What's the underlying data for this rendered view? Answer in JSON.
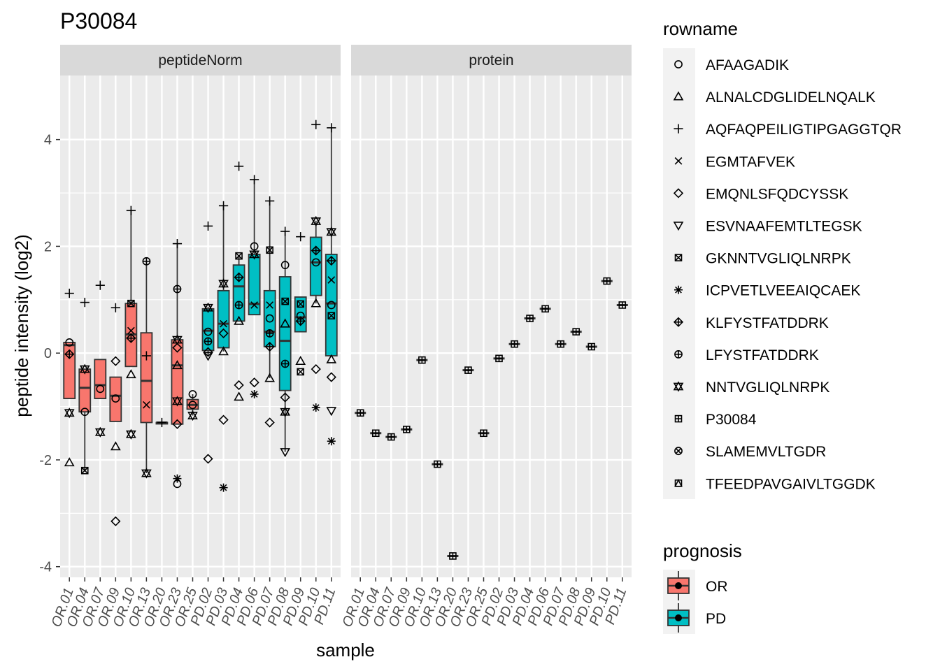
{
  "chart_data": {
    "type": "box",
    "title": "P30084",
    "xlabel": "sample",
    "ylabel": "peptide intensity (log2)",
    "ylim": [
      -4.2,
      5.2
    ],
    "yticks": [
      -4,
      -2,
      0,
      2,
      4
    ],
    "grid": true,
    "facets": [
      "peptideNorm",
      "protein"
    ],
    "samples": [
      "OR.01",
      "OR.04",
      "OR.07",
      "OR.09",
      "OR.10",
      "OR.13",
      "OR.20",
      "OR.23",
      "OR.25",
      "PD.02",
      "PD.03",
      "PD.04",
      "PD.06",
      "PD.07",
      "PD.08",
      "PD.09",
      "PD.10",
      "PD.11"
    ],
    "sample_prognosis": [
      "OR",
      "OR",
      "OR",
      "OR",
      "OR",
      "OR",
      "OR",
      "OR",
      "OR",
      "PD",
      "PD",
      "PD",
      "PD",
      "PD",
      "PD",
      "PD",
      "PD",
      "PD"
    ],
    "legend_rowname": {
      "title": "rowname",
      "items": [
        {
          "name": "AFAAGADIK",
          "shape": "circle"
        },
        {
          "name": "ALNALCDGLIDELNQALK",
          "shape": "triangle"
        },
        {
          "name": "AQFAQPEILIGTIPGAGGTQR",
          "shape": "plus"
        },
        {
          "name": "EGMTAFVEK",
          "shape": "cross"
        },
        {
          "name": "EMQNLSFQDCYSSK",
          "shape": "diamond"
        },
        {
          "name": "ESVNAAFEMTLTEGSK",
          "shape": "triangle-down"
        },
        {
          "name": "GKNNTVGLIQLNRPK",
          "shape": "square-x"
        },
        {
          "name": "ICPVETLVEEAIQCAEK",
          "shape": "asterisk"
        },
        {
          "name": "KLFYSTFATDDRK",
          "shape": "diamond-plus"
        },
        {
          "name": "LFYSTFATDDRK",
          "shape": "circle-plus"
        },
        {
          "name": "NNTVGLIQLNRPK",
          "shape": "star6"
        },
        {
          "name": "P30084",
          "shape": "square-plus"
        },
        {
          "name": "SLAMEMVLTGDR",
          "shape": "circle-x"
        },
        {
          "name": "TFEEDPAVGAIVLTGGDK",
          "shape": "square-triangle"
        }
      ]
    },
    "legend_prognosis": {
      "title": "prognosis",
      "items": [
        {
          "name": "OR",
          "color": "#F8766D"
        },
        {
          "name": "PD",
          "color": "#00BFC4"
        }
      ]
    },
    "peptideNorm_boxes": [
      {
        "sample": "OR.01",
        "q1": -0.85,
        "median": 0.15,
        "q3": 0.2,
        "lo": -0.85,
        "hi": 0.2
      },
      {
        "sample": "OR.04",
        "q1": -1.1,
        "median": -0.65,
        "q3": -0.3,
        "lo": -2.2,
        "hi": -0.3
      },
      {
        "sample": "OR.07",
        "q1": -0.85,
        "median": -0.6,
        "q3": -0.12,
        "lo": -0.85,
        "hi": -0.12
      },
      {
        "sample": "OR.09",
        "q1": -1.28,
        "median": -0.8,
        "q3": -0.45,
        "lo": -1.28,
        "hi": -0.45
      },
      {
        "sample": "OR.10",
        "q1": -0.25,
        "median": 0.35,
        "q3": 0.93,
        "lo": -0.25,
        "hi": 2.67
      },
      {
        "sample": "OR.13",
        "q1": -1.3,
        "median": -0.52,
        "q3": 0.38,
        "lo": -2.25,
        "hi": 1.72
      },
      {
        "sample": "OR.20",
        "q1": -1.3,
        "median": -1.3,
        "q3": -1.3,
        "lo": -1.3,
        "hi": -1.3
      },
      {
        "sample": "OR.23",
        "q1": -1.33,
        "median": -0.23,
        "q3": 0.25,
        "lo": -1.33,
        "hi": 2.05
      },
      {
        "sample": "OR.25",
        "q1": -1.05,
        "median": -0.97,
        "q3": -0.87,
        "lo": -1.17,
        "hi": -0.77
      },
      {
        "sample": "PD.02",
        "q1": 0.05,
        "median": 0.42,
        "q3": 0.83,
        "lo": -0.05,
        "hi": 0.87
      },
      {
        "sample": "PD.03",
        "q1": 0.1,
        "median": 0.55,
        "q3": 1.17,
        "lo": 0.03,
        "hi": 2.76
      },
      {
        "sample": "PD.04",
        "q1": 0.6,
        "median": 1.25,
        "q3": 1.65,
        "lo": 0.6,
        "hi": 1.82
      },
      {
        "sample": "PD.06",
        "q1": 0.72,
        "median": 0.92,
        "q3": 1.85,
        "lo": 0.72,
        "hi": 3.25
      },
      {
        "sample": "PD.07",
        "q1": 0.12,
        "median": 0.4,
        "q3": 1.17,
        "lo": -0.47,
        "hi": 2.85
      },
      {
        "sample": "PD.08",
        "q1": -0.7,
        "median": 0.23,
        "q3": 1.43,
        "lo": -1.85,
        "hi": 2.28
      },
      {
        "sample": "PD.09",
        "q1": 0.4,
        "median": 0.67,
        "q3": 1.05,
        "lo": 0.4,
        "hi": 1.05
      },
      {
        "sample": "PD.10",
        "q1": 1.08,
        "median": 1.7,
        "q3": 2.17,
        "lo": 0.93,
        "hi": 2.48
      },
      {
        "sample": "PD.11",
        "q1": -0.05,
        "median": 0.93,
        "q3": 1.85,
        "lo": -0.05,
        "hi": 4.22
      }
    ],
    "peptideNorm_points": [
      {
        "sample": "OR.01",
        "shape": "plus",
        "y": 1.12
      },
      {
        "sample": "OR.01",
        "shape": "circle",
        "y": 0.2
      },
      {
        "sample": "OR.01",
        "shape": "diamond-plus",
        "y": -0.02
      },
      {
        "sample": "OR.01",
        "shape": "star6",
        "y": -1.12
      },
      {
        "sample": "OR.01",
        "shape": "triangle",
        "y": -2.05
      },
      {
        "sample": "OR.04",
        "shape": "plus",
        "y": 0.95
      },
      {
        "sample": "OR.04",
        "shape": "star6",
        "y": -0.3
      },
      {
        "sample": "OR.04",
        "shape": "circle",
        "y": -1.1
      },
      {
        "sample": "OR.04",
        "shape": "square-x",
        "y": -2.2
      },
      {
        "sample": "OR.07",
        "shape": "plus",
        "y": 1.27
      },
      {
        "sample": "OR.07",
        "shape": "circle",
        "y": -0.67
      },
      {
        "sample": "OR.07",
        "shape": "star6",
        "y": -1.48
      },
      {
        "sample": "OR.09",
        "shape": "plus",
        "y": 0.85
      },
      {
        "sample": "OR.09",
        "shape": "diamond",
        "y": -0.15
      },
      {
        "sample": "OR.09",
        "shape": "circle",
        "y": -0.85
      },
      {
        "sample": "OR.09",
        "shape": "triangle",
        "y": -1.75
      },
      {
        "sample": "OR.09",
        "shape": "diamond",
        "y": -3.15
      },
      {
        "sample": "OR.10",
        "shape": "plus",
        "y": 2.67
      },
      {
        "sample": "OR.10",
        "shape": "square-x",
        "y": 0.93
      },
      {
        "sample": "OR.10",
        "shape": "cross",
        "y": 0.42
      },
      {
        "sample": "OR.10",
        "shape": "diamond-plus",
        "y": 0.28
      },
      {
        "sample": "OR.10",
        "shape": "triangle",
        "y": -0.4
      },
      {
        "sample": "OR.10",
        "shape": "star6",
        "y": -1.52
      },
      {
        "sample": "OR.13",
        "shape": "circle-plus",
        "y": 1.72
      },
      {
        "sample": "OR.13",
        "shape": "plus",
        "y": -0.05
      },
      {
        "sample": "OR.13",
        "shape": "cross",
        "y": -0.97
      },
      {
        "sample": "OR.13",
        "shape": "star6",
        "y": -2.25
      },
      {
        "sample": "OR.20",
        "shape": "plus",
        "y": -1.3
      },
      {
        "sample": "OR.23",
        "shape": "plus",
        "y": 2.05
      },
      {
        "sample": "OR.23",
        "shape": "circle-plus",
        "y": 1.2
      },
      {
        "sample": "OR.23",
        "shape": "star6",
        "y": 0.25
      },
      {
        "sample": "OR.23",
        "shape": "diamond",
        "y": 0.1
      },
      {
        "sample": "OR.23",
        "shape": "triangle",
        "y": -0.23
      },
      {
        "sample": "OR.23",
        "shape": "star6",
        "y": -0.9
      },
      {
        "sample": "OR.23",
        "shape": "diamond",
        "y": -1.33
      },
      {
        "sample": "OR.23",
        "shape": "asterisk",
        "y": -2.35
      },
      {
        "sample": "OR.23",
        "shape": "circle",
        "y": -2.45
      },
      {
        "sample": "OR.25",
        "shape": "circle",
        "y": -0.77
      },
      {
        "sample": "OR.25",
        "shape": "circle",
        "y": -0.97
      },
      {
        "sample": "OR.25",
        "shape": "star6",
        "y": -1.17
      },
      {
        "sample": "PD.02",
        "shape": "plus",
        "y": 2.38
      },
      {
        "sample": "PD.02",
        "shape": "star6",
        "y": 0.85
      },
      {
        "sample": "PD.02",
        "shape": "circle",
        "y": 0.4
      },
      {
        "sample": "PD.02",
        "shape": "circle-plus",
        "y": 0.22
      },
      {
        "sample": "PD.02",
        "shape": "diamond",
        "y": 0.02
      },
      {
        "sample": "PD.02",
        "shape": "triangle-down",
        "y": -0.05
      },
      {
        "sample": "PD.02",
        "shape": "diamond",
        "y": -1.98
      },
      {
        "sample": "PD.03",
        "shape": "plus",
        "y": 2.76
      },
      {
        "sample": "PD.03",
        "shape": "star6",
        "y": 1.3
      },
      {
        "sample": "PD.03",
        "shape": "cross",
        "y": 0.55
      },
      {
        "sample": "PD.03",
        "shape": "diamond",
        "y": 0.37
      },
      {
        "sample": "PD.03",
        "shape": "triangle",
        "y": 0.03
      },
      {
        "sample": "PD.03",
        "shape": "diamond",
        "y": -1.25
      },
      {
        "sample": "PD.03",
        "shape": "asterisk",
        "y": -2.52
      },
      {
        "sample": "PD.04",
        "shape": "plus",
        "y": 3.5
      },
      {
        "sample": "PD.04",
        "shape": "square-x",
        "y": 1.82
      },
      {
        "sample": "PD.04",
        "shape": "diamond-plus",
        "y": 1.42
      },
      {
        "sample": "PD.04",
        "shape": "circle-plus",
        "y": 0.9
      },
      {
        "sample": "PD.04",
        "shape": "triangle",
        "y": 0.6
      },
      {
        "sample": "PD.04",
        "shape": "diamond",
        "y": -0.6
      },
      {
        "sample": "PD.04",
        "shape": "triangle",
        "y": -0.82
      },
      {
        "sample": "PD.06",
        "shape": "plus",
        "y": 3.25
      },
      {
        "sample": "PD.06",
        "shape": "circle",
        "y": 2.0
      },
      {
        "sample": "PD.06",
        "shape": "star6",
        "y": 1.85
      },
      {
        "sample": "PD.06",
        "shape": "cross",
        "y": 0.9
      },
      {
        "sample": "PD.06",
        "shape": "diamond",
        "y": -0.55
      },
      {
        "sample": "PD.06",
        "shape": "asterisk",
        "y": -0.77
      },
      {
        "sample": "PD.07",
        "shape": "plus",
        "y": 2.85
      },
      {
        "sample": "PD.07",
        "shape": "square-x",
        "y": 1.93
      },
      {
        "sample": "PD.07",
        "shape": "cross",
        "y": 0.9
      },
      {
        "sample": "PD.07",
        "shape": "circle",
        "y": 0.65
      },
      {
        "sample": "PD.07",
        "shape": "circle-plus",
        "y": 0.37
      },
      {
        "sample": "PD.07",
        "shape": "diamond-plus",
        "y": 0.12
      },
      {
        "sample": "PD.07",
        "shape": "triangle",
        "y": -0.47
      },
      {
        "sample": "PD.07",
        "shape": "diamond",
        "y": -1.3
      },
      {
        "sample": "PD.08",
        "shape": "plus",
        "y": 2.28
      },
      {
        "sample": "PD.08",
        "shape": "circle",
        "y": 1.65
      },
      {
        "sample": "PD.08",
        "shape": "square-x",
        "y": 0.97
      },
      {
        "sample": "PD.08",
        "shape": "triangle",
        "y": 0.55
      },
      {
        "sample": "PD.08",
        "shape": "circle-plus",
        "y": -0.2
      },
      {
        "sample": "PD.08",
        "shape": "diamond",
        "y": -0.83
      },
      {
        "sample": "PD.08",
        "shape": "star6",
        "y": -1.1
      },
      {
        "sample": "PD.08",
        "shape": "triangle-down",
        "y": -1.85
      },
      {
        "sample": "PD.09",
        "shape": "plus",
        "y": 2.18
      },
      {
        "sample": "PD.09",
        "shape": "square-x",
        "y": 0.92
      },
      {
        "sample": "PD.09",
        "shape": "circle",
        "y": 0.7
      },
      {
        "sample": "PD.09",
        "shape": "diamond-plus",
        "y": 0.6
      },
      {
        "sample": "PD.09",
        "shape": "triangle",
        "y": -0.15
      },
      {
        "sample": "PD.09",
        "shape": "square-x",
        "y": -0.35
      },
      {
        "sample": "PD.10",
        "shape": "plus",
        "y": 4.28
      },
      {
        "sample": "PD.10",
        "shape": "star6",
        "y": 2.47
      },
      {
        "sample": "PD.10",
        "shape": "diamond-plus",
        "y": 1.92
      },
      {
        "sample": "PD.10",
        "shape": "circle",
        "y": 1.7
      },
      {
        "sample": "PD.10",
        "shape": "triangle",
        "y": 0.93
      },
      {
        "sample": "PD.10",
        "shape": "diamond",
        "y": -0.3
      },
      {
        "sample": "PD.10",
        "shape": "asterisk",
        "y": -1.02
      },
      {
        "sample": "PD.11",
        "shape": "plus",
        "y": 4.22
      },
      {
        "sample": "PD.11",
        "shape": "star6",
        "y": 2.27
      },
      {
        "sample": "PD.11",
        "shape": "diamond-plus",
        "y": 1.73
      },
      {
        "sample": "PD.11",
        "shape": "cross",
        "y": 1.37
      },
      {
        "sample": "PD.11",
        "shape": "circle",
        "y": 0.9
      },
      {
        "sample": "PD.11",
        "shape": "square-x",
        "y": 0.7
      },
      {
        "sample": "PD.11",
        "shape": "triangle",
        "y": -0.12
      },
      {
        "sample": "PD.11",
        "shape": "diamond",
        "y": -0.45
      },
      {
        "sample": "PD.11",
        "shape": "triangle-down",
        "y": -1.08
      },
      {
        "sample": "PD.11",
        "shape": "asterisk",
        "y": -1.65
      }
    ],
    "protein_values": [
      {
        "sample": "OR.01",
        "y": -1.12
      },
      {
        "sample": "OR.04",
        "y": -1.5
      },
      {
        "sample": "OR.07",
        "y": -1.57
      },
      {
        "sample": "OR.09",
        "y": -1.43
      },
      {
        "sample": "OR.10",
        "y": -0.13
      },
      {
        "sample": "OR.13",
        "y": -2.08
      },
      {
        "sample": "OR.20",
        "y": -3.8
      },
      {
        "sample": "OR.23",
        "y": -0.32
      },
      {
        "sample": "OR.25",
        "y": -1.5
      },
      {
        "sample": "PD.02",
        "y": -0.1
      },
      {
        "sample": "PD.03",
        "y": 0.17
      },
      {
        "sample": "PD.04",
        "y": 0.65
      },
      {
        "sample": "PD.06",
        "y": 0.83
      },
      {
        "sample": "PD.07",
        "y": 0.17
      },
      {
        "sample": "PD.08",
        "y": 0.4
      },
      {
        "sample": "PD.09",
        "y": 0.12
      },
      {
        "sample": "PD.10",
        "y": 1.35
      },
      {
        "sample": "PD.11",
        "y": 0.9
      }
    ]
  }
}
